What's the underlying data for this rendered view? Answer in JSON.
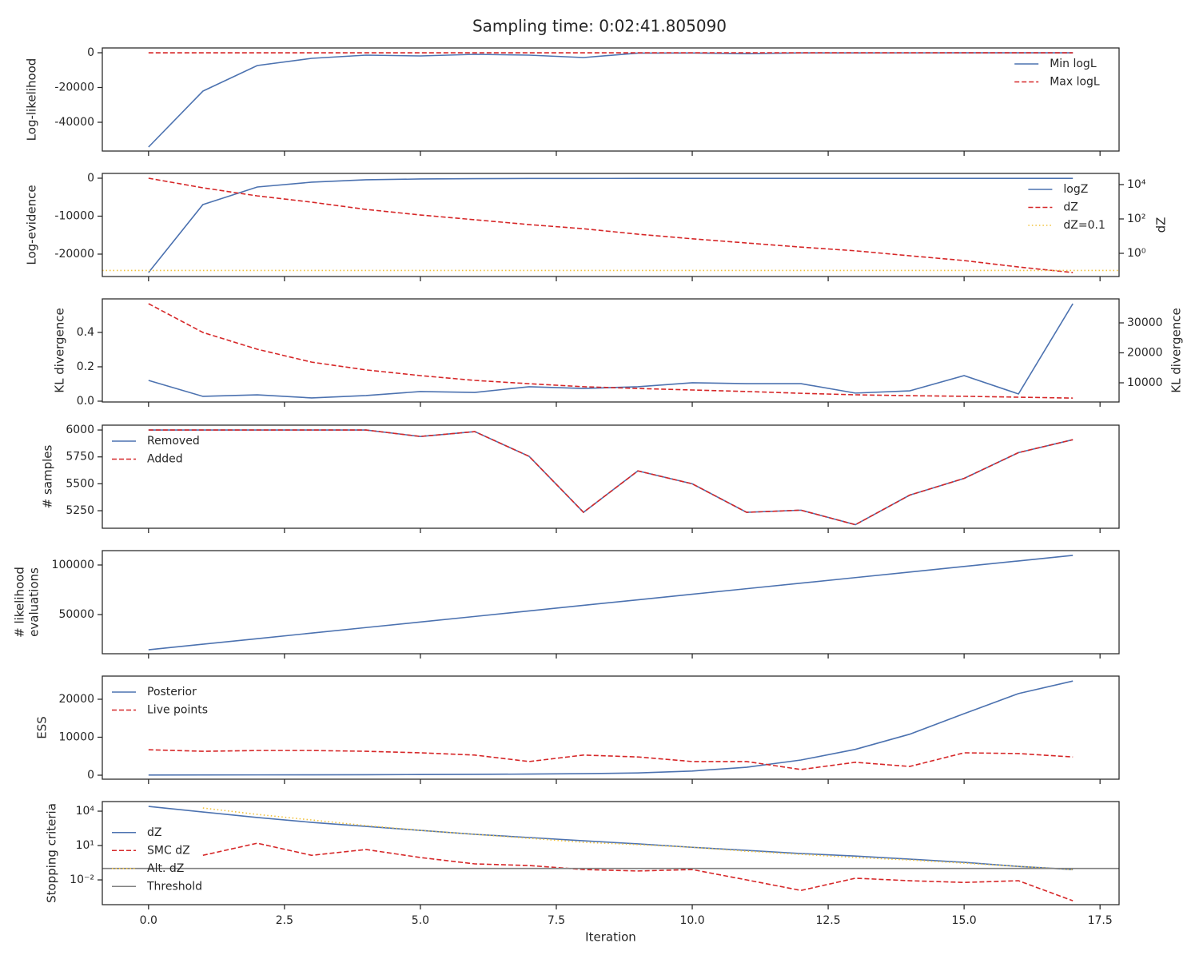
{
  "title": "Sampling time: 0:02:41.805090",
  "xlabel": "Iteration",
  "xlim": [
    -0.85,
    17.85
  ],
  "xticks": [
    {
      "value": 0,
      "label": "0.0"
    },
    2.5,
    {
      "value": 5,
      "label": "5.0"
    },
    7.5,
    {
      "value": 10,
      "label": "10.0"
    },
    12.5,
    {
      "value": 15,
      "label": "15.0"
    },
    17.5
  ],
  "x": [
    0,
    1,
    2,
    3,
    4,
    5,
    6,
    7,
    8,
    9,
    10,
    11,
    12,
    13,
    14,
    15,
    16,
    17
  ],
  "chart_data": [
    {
      "type": "line",
      "ylabel": "Log-likelihood",
      "ylim": [
        -56550,
        2760
      ],
      "yticks": [
        -40000,
        -20000,
        0
      ],
      "legend": "upper right",
      "series": [
        {
          "name": "Min logL",
          "color": "#4c72b0",
          "style": "solid",
          "values": [
            -54250,
            -22070,
            -7360,
            -3220,
            -1380,
            -1840,
            -920,
            -1380,
            -2760,
            -200,
            -150,
            -500,
            -100,
            -80,
            -60,
            -50,
            -40,
            -30
          ]
        },
        {
          "name": "Max logL",
          "color": "#d62728",
          "style": "dashed",
          "values": [
            -20,
            -20,
            -20,
            -20,
            -20,
            -20,
            -20,
            -20,
            -20,
            -20,
            -20,
            -20,
            -20,
            -20,
            -20,
            -20,
            -20,
            -20
          ]
        }
      ]
    },
    {
      "type": "line",
      "ylabel": "Log-evidence",
      "ylim": [
        -25900,
        1260
      ],
      "yticks": [
        -20000,
        -10000,
        0
      ],
      "y2label": "dZ",
      "y2log": true,
      "y2lim": [
        0.0447,
        44700
      ],
      "y2ticks": [
        {
          "value": 1,
          "label": "10⁰"
        },
        {
          "value": 100,
          "label": "10²"
        },
        {
          "value": 10000,
          "label": "10⁴"
        }
      ],
      "legend": "upper right",
      "series": [
        {
          "name": "logZ",
          "color": "#4c72b0",
          "style": "solid",
          "values": [
            -24840,
            -6950,
            -2320,
            -1050,
            -420,
            -210,
            -120,
            -80,
            -60,
            -50,
            -45,
            -40,
            -38,
            -36,
            -35,
            -34,
            -33,
            -33
          ]
        },
        {
          "name": "dZ",
          "color": "#d62728",
          "style": "dashed",
          "axis": "y2",
          "values": [
            23500,
            6500,
            2200,
            950,
            360,
            170,
            90,
            47,
            27,
            13,
            7,
            4,
            2.3,
            1.4,
            0.72,
            0.38,
            0.16,
            0.076
          ]
        },
        {
          "name": "dZ=0.1",
          "color": "#f2c23b",
          "style": "dotted",
          "axis": "y2",
          "hline": 0.1
        }
      ]
    },
    {
      "type": "line",
      "ylabel": "KL divergence",
      "ylim": [
        -0.0047,
        0.595
      ],
      "yticks": [
        {
          "value": 0,
          "label": "0.0"
        },
        0.2,
        0.4
      ],
      "y2label": "KL divergence",
      "y2lim": [
        3600,
        38000
      ],
      "y2ticks": [
        10000,
        20000,
        30000
      ],
      "series": [
        {
          "color": "#4c72b0",
          "style": "solid",
          "values": [
            0.121,
            0.028,
            0.037,
            0.019,
            0.033,
            0.056,
            0.051,
            0.084,
            0.074,
            0.084,
            0.107,
            0.102,
            0.102,
            0.047,
            0.06,
            0.149,
            0.042,
            0.567
          ]
        },
        {
          "color": "#d62728",
          "style": "dashed",
          "axis": "y2",
          "values": [
            36400,
            26800,
            21200,
            16900,
            14300,
            12400,
            10800,
            9700,
            8700,
            8100,
            7600,
            7100,
            6500,
            6000,
            5700,
            5500,
            5200,
            4900
          ]
        }
      ]
    },
    {
      "type": "line",
      "ylabel": "# samples",
      "ylim": [
        5087,
        6045
      ],
      "yticks": [
        5250,
        5500,
        5750,
        6000
      ],
      "legend": "upper left",
      "series": [
        {
          "name": "Removed",
          "color": "#4c72b0",
          "style": "solid",
          "values": [
            6000,
            6000,
            6000,
            6000,
            6000,
            5940,
            5985,
            5755,
            5235,
            5620,
            5500,
            5235,
            5255,
            5120,
            5395,
            5550,
            5790,
            5910
          ]
        },
        {
          "name": "Added",
          "color": "#d62728",
          "style": "dashed",
          "values": [
            6000,
            6000,
            6000,
            6000,
            6000,
            5940,
            5985,
            5755,
            5235,
            5620,
            5500,
            5235,
            5255,
            5120,
            5395,
            5550,
            5790,
            5910
          ]
        }
      ]
    },
    {
      "type": "line",
      "ylabel": [
        "# likelihood",
        "evaluations"
      ],
      "ylim": [
        10500,
        114500
      ],
      "yticks": [
        50000,
        100000
      ],
      "series": [
        {
          "color": "#4c72b0",
          "style": "solid",
          "values": [
            14500,
            20100,
            25700,
            31300,
            36900,
            42500,
            48100,
            53700,
            59300,
            64900,
            70500,
            76100,
            81700,
            87300,
            92900,
            98500,
            104100,
            109700
          ]
        }
      ]
    },
    {
      "type": "line",
      "ylabel": "ESS",
      "ylim": [
        -1050,
        26100
      ],
      "yticks": [
        0,
        10000,
        20000
      ],
      "legend": "upper left",
      "series": [
        {
          "name": "Posterior",
          "color": "#4c72b0",
          "style": "solid",
          "values": [
            50,
            60,
            80,
            100,
            130,
            170,
            220,
            300,
            400,
            600,
            1100,
            2100,
            4000,
            6800,
            10800,
            16200,
            21500,
            24800
          ]
        },
        {
          "name": "Live points",
          "color": "#d62728",
          "style": "dashed",
          "values": [
            6700,
            6300,
            6500,
            6500,
            6300,
            5900,
            5300,
            3600,
            5300,
            4800,
            3600,
            3600,
            1500,
            3400,
            2300,
            5900,
            5700,
            4800
          ]
        }
      ]
    },
    {
      "type": "line",
      "ylabel": "Stopping criteria",
      "ylog": true,
      "ylim": [
        6.9e-05,
        69000
      ],
      "yticks": [
        {
          "value": 0.01,
          "label": "10⁻²"
        },
        {
          "value": 10,
          "label": "10¹"
        },
        {
          "value": 10000,
          "label": "10⁴"
        }
      ],
      "legend": "center left",
      "series": [
        {
          "name": "dZ",
          "color": "#4c72b0",
          "style": "solid",
          "values": [
            26000,
            8500,
            2800,
            1050,
            470,
            210,
            95,
            50,
            26,
            14,
            7,
            3.8,
            2,
            1.2,
            0.65,
            0.34,
            0.15,
            0.08
          ]
        },
        {
          "name": "SMC dZ",
          "color": "#d62728",
          "style": "dashed",
          "values": [
            null,
            1.4,
            16,
            1.4,
            4.5,
            0.9,
            0.25,
            0.18,
            0.08,
            0.06,
            0.08,
            0.01,
            0.0012,
            0.014,
            0.0085,
            0.006,
            0.0085,
            0.00015
          ]
        },
        {
          "name": "Alt. dZ",
          "color": "#f2c23b",
          "style": "dotted",
          "values": [
            null,
            19000,
            5200,
            1700,
            550,
            210,
            95,
            43,
            19,
            12,
            7,
            3.2,
            1.7,
            0.9,
            0.55,
            0.29,
            0.15,
            0.08
          ]
        },
        {
          "name": "Threshold",
          "color": "#808080",
          "style": "solid",
          "hline": 0.1
        }
      ]
    }
  ]
}
